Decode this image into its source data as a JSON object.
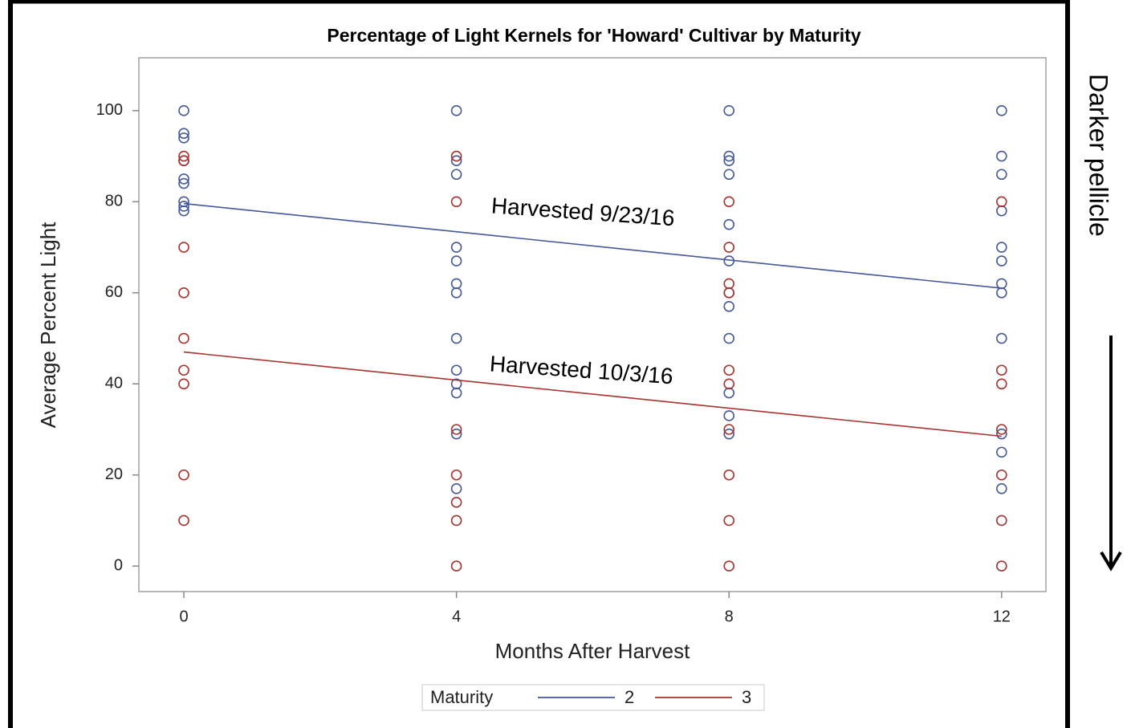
{
  "chart_data": {
    "type": "scatter",
    "title": "Percentage of Light Kernels for 'Howard' Cultivar by Maturity",
    "x_label": "Months After Harvest",
    "y_label": "Average Percent Light",
    "xlim": [
      -0.66,
      12.65
    ],
    "ylim": [
      -5.6,
      111.6
    ],
    "xticks": [
      0,
      4,
      8,
      12
    ],
    "yticks": [
      0,
      20,
      40,
      60,
      80,
      100
    ],
    "grid": false,
    "legend_title": "Maturity",
    "legend_position": "bottom",
    "series": [
      {
        "name": "2",
        "color": "#44589a",
        "x": [
          0,
          0,
          0,
          0,
          0,
          0,
          0,
          0,
          0,
          4,
          4,
          4,
          4,
          4,
          4,
          4,
          4,
          4,
          4,
          4,
          4,
          4,
          8,
          8,
          8,
          8,
          8,
          8,
          8,
          8,
          8,
          8,
          8,
          8,
          12,
          12,
          12,
          12,
          12,
          12,
          12,
          12,
          12,
          12,
          12,
          12
        ],
        "values": [
          100,
          95,
          94,
          89,
          85,
          84,
          80,
          79,
          78,
          100,
          89,
          86,
          70,
          67,
          62,
          60,
          50,
          43,
          40,
          38,
          29,
          17,
          100,
          90,
          89,
          86,
          75,
          67,
          60,
          57,
          50,
          38,
          33,
          29,
          100,
          90,
          86,
          78,
          70,
          67,
          62,
          60,
          50,
          29,
          25,
          17
        ],
        "fit_x": [
          0,
          12
        ],
        "fit": [
          79.6,
          61
        ]
      },
      {
        "name": "3",
        "color": "#a8322d",
        "x": [
          0,
          0,
          0,
          0,
          0,
          0,
          0,
          0,
          0,
          4,
          4,
          4,
          4,
          4,
          4,
          4,
          8,
          8,
          8,
          8,
          8,
          8,
          8,
          8,
          8,
          8,
          12,
          12,
          12,
          12,
          12,
          12,
          12
        ],
        "values": [
          90,
          89,
          70,
          60,
          50,
          43,
          40,
          20,
          10,
          90,
          80,
          30,
          20,
          14,
          10,
          0,
          80,
          70,
          62,
          60,
          43,
          40,
          30,
          20,
          10,
          0,
          80,
          43,
          40,
          30,
          20,
          10,
          0
        ],
        "fit_x": [
          0,
          12
        ],
        "fit": [
          47,
          28.5
        ]
      }
    ],
    "annotations": [
      "Harvested 9/23/16",
      "Harvested 10/3/16",
      "Darker pellicle"
    ]
  }
}
